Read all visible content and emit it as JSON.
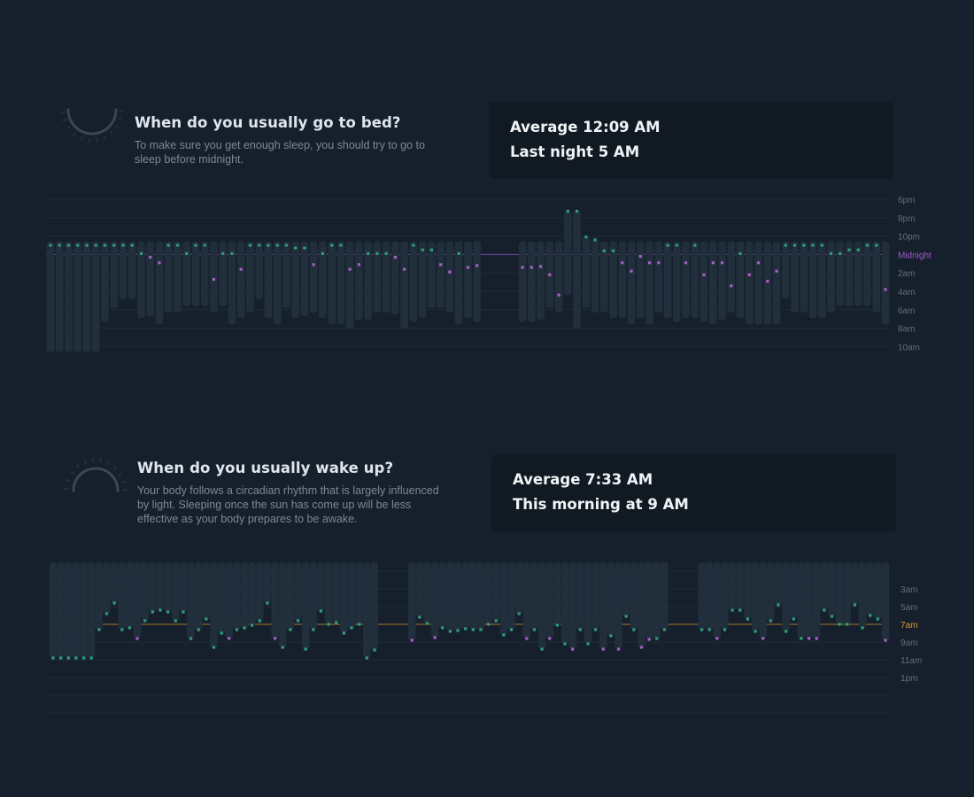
{
  "bedtime": {
    "title": "When do you usually go to bed?",
    "description": "To make sure you get enough sleep, you should try to go to sleep before midnight.",
    "stat_lines": [
      "Average 12:09 AM",
      "Last night 5 AM"
    ]
  },
  "wake": {
    "title": "When do you usually wake up?",
    "description": "Your body follows a circadian rhythm that is largely influenced by light. Sleeping once the sun has come up will be less effective as your body prepares to be awake.",
    "stat_lines": [
      "Average 7:33 AM",
      "This morning at 9 AM"
    ]
  },
  "colors": {
    "background": "#16202c",
    "card": "#111922",
    "bar": "#212e3b",
    "dot_good": "#2e9e7c",
    "dot_late": "#a85fc4",
    "midnight_line": "#7d46a8",
    "seven_am_line": "#a8742c",
    "midnight_label": "#9b5cc9",
    "seven_am_label": "#d9953a",
    "tick_label": "#5f6e7d"
  },
  "chart_data": [
    {
      "type": "range_bar",
      "title": "When do you usually go to bed?",
      "y_unit": "hours relative to 6pm (0 = 6pm, 16 = 10am)",
      "y_range": [
        0,
        16
      ],
      "y_ticks": [
        "6pm",
        "8pm",
        "10pm",
        "Midnight",
        "2am",
        "4am",
        "6am",
        "8am",
        "10am"
      ],
      "reference_line": {
        "label": "Midnight",
        "value": 6
      },
      "bar_bottom": 4.6,
      "series": [
        {
          "start": 5,
          "end": 16.6
        },
        {
          "start": 5,
          "end": 16.6
        },
        {
          "start": 5,
          "end": 16.6
        },
        {
          "start": 5,
          "end": 16.6
        },
        {
          "start": 5,
          "end": 16.6
        },
        {
          "start": 5,
          "end": 16.6
        },
        {
          "start": 5,
          "end": 13.3
        },
        {
          "start": 5,
          "end": 11.8
        },
        {
          "start": 5,
          "end": 10.8
        },
        {
          "start": 5,
          "end": 10.8
        },
        {
          "start": 5.9,
          "end": 12.9
        },
        {
          "start": 6.3,
          "end": 12.7
        },
        {
          "start": 6.9,
          "end": 13.6
        },
        {
          "start": 5,
          "end": 12.3
        },
        {
          "start": 5,
          "end": 12.3
        },
        {
          "start": 5.9,
          "end": 11.6
        },
        {
          "start": 5,
          "end": 11.6
        },
        {
          "start": 5,
          "end": 11.6
        },
        {
          "start": 8.7,
          "end": 12.3
        },
        {
          "start": 5.9,
          "end": 11.6
        },
        {
          "start": 5.9,
          "end": 13.6
        },
        {
          "start": 7.6,
          "end": 12.9
        },
        {
          "start": 5,
          "end": 12.3
        },
        {
          "start": 5,
          "end": 10.8
        },
        {
          "start": 5,
          "end": 12.9
        },
        {
          "start": 5,
          "end": 13.6
        },
        {
          "start": 5,
          "end": 11.8
        },
        {
          "start": 5.3,
          "end": 12.9
        },
        {
          "start": 5.3,
          "end": 12.7
        },
        {
          "start": 7.1,
          "end": 12.3
        },
        {
          "start": 5.9,
          "end": 12.9
        },
        {
          "start": 5,
          "end": 13.6
        },
        {
          "start": 5,
          "end": 13.6
        },
        {
          "start": 7.6,
          "end": 14.1
        },
        {
          "start": 7.1,
          "end": 13.1
        },
        {
          "start": 5.9,
          "end": 13.1
        },
        {
          "start": 5.9,
          "end": 12.3
        },
        {
          "start": 5.9,
          "end": 12.3
        },
        {
          "start": 6.3,
          "end": 12.5
        },
        {
          "start": 7.6,
          "end": 14.1
        },
        {
          "start": 5,
          "end": 13.3
        },
        {
          "start": 5.5,
          "end": 12.9
        },
        {
          "start": 5.5,
          "end": 11.8
        },
        {
          "start": 7.1,
          "end": 11.8
        },
        {
          "start": 7.9,
          "end": 12.3
        },
        {
          "start": 5.9,
          "end": 13.6
        },
        {
          "start": 7.4,
          "end": 12.9
        },
        {
          "start": 7.2,
          "end": 13.3
        },
        {
          "start": 7.4,
          "end": 13.3
        },
        {
          "start": 7.4,
          "end": 13.3
        },
        {
          "start": 7.3,
          "end": 13.1
        },
        {
          "start": 8.2,
          "end": 11.8
        },
        {
          "start": 10.4,
          "end": 12.3
        },
        {
          "start": 1.3,
          "end": 10.4
        },
        {
          "start": 1.3,
          "end": 14.1
        },
        {
          "start": 4.1,
          "end": 11.8
        },
        {
          "start": 4.4,
          "end": 12.3
        },
        {
          "start": 5.6,
          "end": 12.3
        },
        {
          "start": 5.6,
          "end": 12.9
        },
        {
          "start": 6.9,
          "end": 12.9
        },
        {
          "start": 7.8,
          "end": 13.6
        },
        {
          "start": 6.2,
          "end": 12.9
        },
        {
          "start": 6.9,
          "end": 13.6
        },
        {
          "start": 6.9,
          "end": 12.3
        },
        {
          "start": 5,
          "end": 12.9
        },
        {
          "start": 5,
          "end": 13.3
        },
        {
          "start": 6.9,
          "end": 12.9
        },
        {
          "start": 5,
          "end": 12.9
        },
        {
          "start": 8.2,
          "end": 13.3
        },
        {
          "start": 6.9,
          "end": 13.6
        },
        {
          "start": 6.9,
          "end": 13.1
        },
        {
          "start": 9.4,
          "end": 12.3
        },
        {
          "start": 5.9,
          "end": 12.9
        },
        {
          "start": 8.2,
          "end": 13.6
        },
        {
          "start": 6.9,
          "end": 13.6
        },
        {
          "start": 8.9,
          "end": 13.6
        },
        {
          "start": 7.8,
          "end": 13.6
        },
        {
          "start": 5,
          "end": 10.8
        },
        {
          "start": 5,
          "end": 12.3
        },
        {
          "start": 5,
          "end": 12.3
        },
        {
          "start": 5,
          "end": 12.9
        },
        {
          "start": 5,
          "end": 12.9
        },
        {
          "start": 5.9,
          "end": 12.3
        },
        {
          "start": 5.9,
          "end": 11.6
        },
        {
          "start": 5.5,
          "end": 11.6
        },
        {
          "start": 5.5,
          "end": 11.6
        },
        {
          "start": 5,
          "end": 11.6
        },
        {
          "start": 5,
          "end": 12.3
        },
        {
          "start": 9.8,
          "end": 13.6
        }
      ],
      "dot_highlight_rule": "dots marking bedtimes after midnight are purple, at or before midnight green"
    },
    {
      "type": "range_bar",
      "title": "When do you usually wake up?",
      "y_unit": "hour of day (3 = 3am, 13 = 1pm)",
      "y_range": [
        1,
        13
      ],
      "y_ticks": [
        "3am",
        "5am",
        "7am",
        "9am",
        "11am",
        "1pm"
      ],
      "reference_line": {
        "label": "7am",
        "value": 7
      },
      "bar_top": 0.2,
      "series": [
        {
          "end": 10.8
        },
        {
          "end": 10.8
        },
        {
          "end": 10.8
        },
        {
          "end": 10.8
        },
        {
          "end": 10.8
        },
        {
          "end": 10.8
        },
        {
          "end": 7.6
        },
        {
          "end": 5.8
        },
        {
          "end": 4.6
        },
        {
          "end": 7.6
        },
        {
          "end": 7.4
        },
        {
          "end": 8.6
        },
        {
          "end": 6.6
        },
        {
          "end": 5.6
        },
        {
          "end": 5.4
        },
        {
          "end": 5.6
        },
        {
          "end": 6.6
        },
        {
          "end": 5.6
        },
        {
          "end": 8.6
        },
        {
          "end": 7.6
        },
        {
          "end": 6.4
        },
        {
          "end": 9.6
        },
        {
          "end": 8.0
        },
        {
          "end": 8.6
        },
        {
          "end": 7.6
        },
        {
          "end": 7.4
        },
        {
          "end": 7.1
        },
        {
          "end": 6.6
        },
        {
          "end": 4.6
        },
        {
          "end": 8.6
        },
        {
          "end": 9.6
        },
        {
          "end": 7.6
        },
        {
          "end": 6.6
        },
        {
          "end": 9.8
        },
        {
          "end": 7.6
        },
        {
          "end": 5.5
        },
        {
          "end": 7.0
        },
        {
          "end": 6.8
        },
        {
          "end": 8.0
        },
        {
          "end": 7.4
        },
        {
          "end": 7.0
        },
        {
          "end": 10.8
        },
        {
          "end": 9.9
        },
        {
          "end": 8.8
        },
        {
          "end": 6.2
        },
        {
          "end": 6.9
        },
        {
          "end": 8.5
        },
        {
          "end": 7.4
        },
        {
          "end": 7.8
        },
        {
          "end": 7.7
        },
        {
          "end": 7.5
        },
        {
          "end": 7.6
        },
        {
          "end": 7.6
        },
        {
          "end": 7.0
        },
        {
          "end": 6.6
        },
        {
          "end": 8.2
        },
        {
          "end": 7.6
        },
        {
          "end": 5.8
        },
        {
          "end": 8.6
        },
        {
          "end": 7.6
        },
        {
          "end": 9.8
        },
        {
          "end": 8.6
        },
        {
          "end": 7.1
        },
        {
          "end": 9.2
        },
        {
          "end": 9.8
        },
        {
          "end": 7.6
        },
        {
          "end": 9.2
        },
        {
          "end": 7.6
        },
        {
          "end": 9.8
        },
        {
          "end": 8.3
        },
        {
          "end": 9.8
        },
        {
          "end": 6.1
        },
        {
          "end": 7.6
        },
        {
          "end": 9.6
        },
        {
          "end": 8.7
        },
        {
          "end": 8.6
        },
        {
          "end": 7.6
        },
        {
          "end": 7.6
        },
        {
          "end": 7.6
        },
        {
          "end": 8.6
        },
        {
          "end": 7.6
        },
        {
          "end": 5.4
        },
        {
          "end": 5.4
        },
        {
          "end": 6.4
        },
        {
          "end": 7.8
        },
        {
          "end": 8.6
        },
        {
          "end": 6.6
        },
        {
          "end": 4.8
        },
        {
          "end": 7.8
        },
        {
          "end": 6.4
        },
        {
          "end": 8.6
        },
        {
          "end": 8.6
        },
        {
          "end": 8.6
        },
        {
          "end": 5.4
        },
        {
          "end": 6.1
        },
        {
          "end": 7.0
        },
        {
          "end": 7.0
        },
        {
          "end": 4.8
        },
        {
          "end": 7.4
        },
        {
          "end": 6.0
        },
        {
          "end": 6.4
        },
        {
          "end": 8.8
        }
      ],
      "dot_highlight_rule": "dots marking wake times after 7am are purple when sleep was late, green otherwise"
    }
  ]
}
